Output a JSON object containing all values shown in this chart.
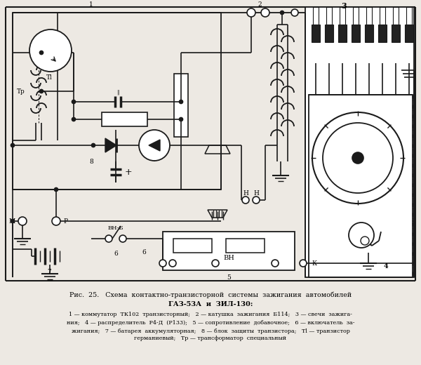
{
  "bg_color": "#ede9e3",
  "lc": "#1a1a1a",
  "title_line1": "Рис.  25.   Схема  контактно-транзисторной  системы  зажигания  автомобилей",
  "title_line2": "ГАЗ-53А  и  ЗИЛ-130:",
  "caption1": "1 — коммутатор  ТК102  транзисторный;   2 — катушка  зажигания  Б114;   3 — свечи  зажига-",
  "caption2": "ния;   4 — распределитель  Р4-Д  (Р133);   5 — сопротивление  добавочное;   6 — включатель  за-",
  "caption3": "жигания;   7 — батарея  аккумуляторная;   8 — блок  защиты  транзистора;   Тl — транзистор",
  "caption4": "германиевый;   Тр — трансформатор  специальный",
  "figsize": [
    6.0,
    5.2
  ],
  "dpi": 100
}
